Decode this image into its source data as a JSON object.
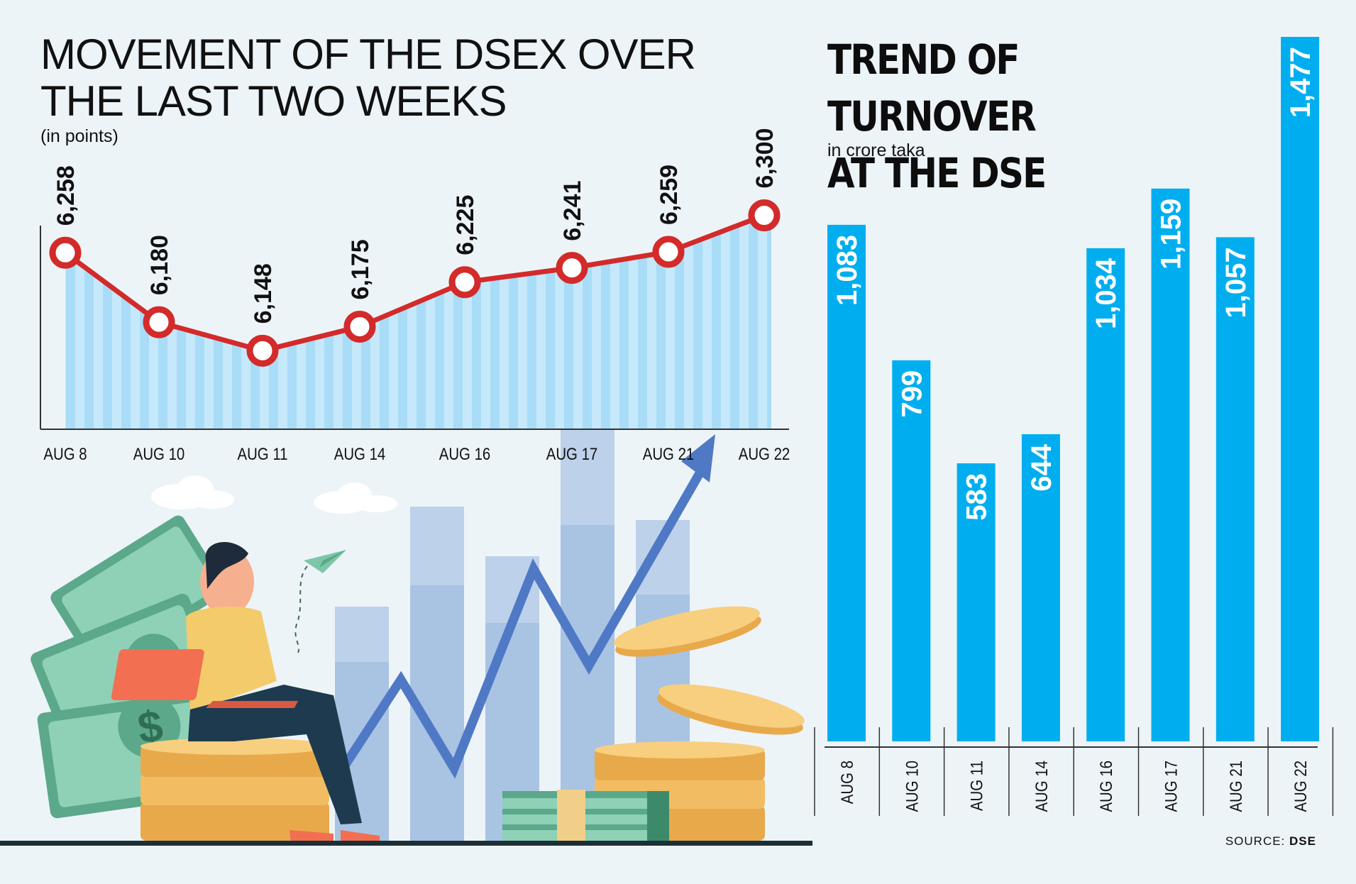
{
  "left_chart": {
    "title": "MOVEMENT OF THE DSEX OVER THE LAST TWO WEEKS",
    "unit": "(in points)"
  },
  "right_chart": {
    "title_line1": "TREND OF TURNOVER",
    "title_line2": "AT THE DSE",
    "unit": "in crore taka"
  },
  "source": {
    "label": "SOURCE:",
    "value": "DSE"
  },
  "colors": {
    "line": "#d32a2a",
    "area": "#a9dcf7",
    "bar": "#00aeef",
    "background": "#edf4f8"
  },
  "chart_data": [
    {
      "type": "line",
      "title": "MOVEMENT OF THE DSEX OVER THE LAST TWO WEEKS",
      "ylabel": "(in points)",
      "categories": [
        "AUG 8",
        "AUG 10",
        "AUG 11",
        "AUG 14",
        "AUG 16",
        "AUG 17",
        "AUG 21",
        "AUG 22"
      ],
      "values": [
        6258,
        6180,
        6148,
        6175,
        6225,
        6241,
        6259,
        6300
      ],
      "value_labels": [
        "6,258",
        "6,180",
        "6,148",
        "6,175",
        "6,225",
        "6,241",
        "6,259",
        "6,300"
      ],
      "ylim": [
        6118,
        6310
      ],
      "grid": false
    },
    {
      "type": "bar",
      "title": "TREND OF TURNOVER AT THE DSE",
      "ylabel": "in crore taka",
      "categories": [
        "AUG 8",
        "AUG 10",
        "AUG 11",
        "AUG 14",
        "AUG 16",
        "AUG 17",
        "AUG 21",
        "AUG 22"
      ],
      "values": [
        1083,
        799,
        583,
        644,
        1034,
        1159,
        1057,
        1477
      ],
      "value_labels": [
        "1,083",
        "799",
        "583",
        "644",
        "1,034",
        "1,159",
        "1,057",
        "1,477"
      ],
      "ylim": [
        0,
        1477
      ],
      "grid": false
    }
  ]
}
